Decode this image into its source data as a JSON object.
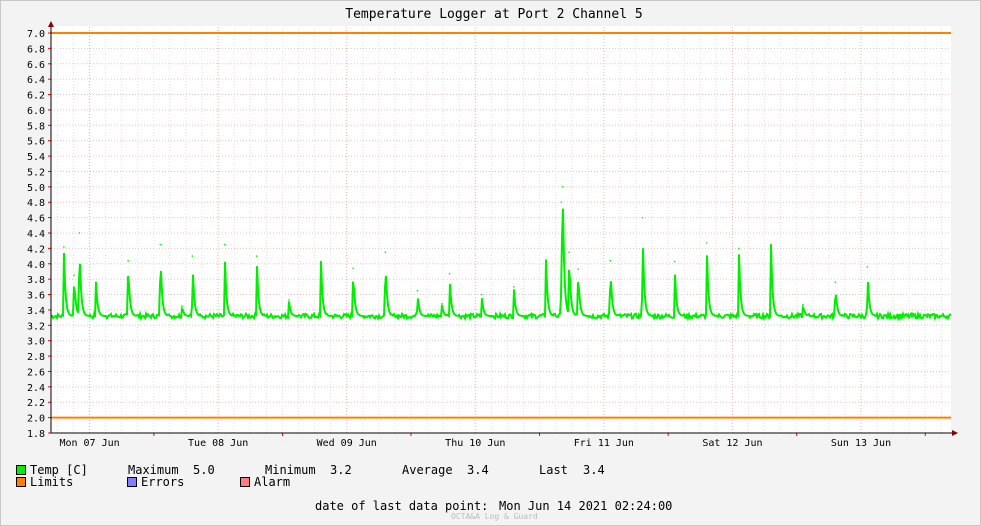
{
  "chart_data": {
    "type": "line",
    "title": "Temperature Logger at Port 2 Channel 5",
    "ylim": [
      1.8,
      7.0
    ],
    "y_ticks": [
      "1.8",
      "2.0",
      "2.2",
      "2.4",
      "2.6",
      "2.8",
      "3.0",
      "3.2",
      "3.4",
      "3.6",
      "3.8",
      "4.0",
      "4.2",
      "4.4",
      "4.6",
      "4.8",
      "5.0",
      "5.2",
      "5.4",
      "5.6",
      "5.8",
      "6.0",
      "6.2",
      "6.4",
      "6.6",
      "6.8",
      "7.0"
    ],
    "x_tick_labels": [
      "Mon 07 Jun",
      "Tue 08 Jun",
      "Wed 09 Jun",
      "Thu 10 Jun",
      "Fri 11 Jun",
      "Sat 12 Jun",
      "Sun 13 Jun"
    ],
    "xlim_days": [
      6.7,
      13.7
    ],
    "grid": true,
    "limits": {
      "upper": 7.0,
      "lower": 2.0,
      "color": "#ff7f00"
    },
    "series": [
      {
        "name": "Temp [C]",
        "color": "#00ee00",
        "baseline": 3.32,
        "spikes": [
          [
            6.8,
            4.22
          ],
          [
            6.88,
            3.85
          ],
          [
            6.92,
            4.4
          ],
          [
            7.05,
            3.76
          ],
          [
            7.3,
            4.04
          ],
          [
            7.55,
            4.25
          ],
          [
            7.72,
            3.45
          ],
          [
            7.8,
            4.1
          ],
          [
            8.05,
            4.25
          ],
          [
            8.3,
            4.1
          ],
          [
            8.55,
            3.53
          ],
          [
            8.8,
            4.03
          ],
          [
            9.05,
            3.94
          ],
          [
            9.3,
            4.15
          ],
          [
            9.55,
            3.65
          ],
          [
            9.74,
            3.48
          ],
          [
            9.8,
            3.87
          ],
          [
            10.05,
            3.6
          ],
          [
            10.3,
            3.7
          ],
          [
            10.55,
            4.05
          ],
          [
            10.67,
            4.8
          ],
          [
            10.68,
            5.0
          ],
          [
            10.73,
            4.15
          ],
          [
            10.8,
            3.93
          ],
          [
            11.05,
            4.04
          ],
          [
            11.3,
            4.6
          ],
          [
            11.55,
            4.03
          ],
          [
            11.8,
            4.27
          ],
          [
            12.05,
            4.2
          ],
          [
            12.3,
            4.25
          ],
          [
            12.55,
            3.47
          ],
          [
            12.8,
            3.76
          ],
          [
            13.05,
            3.96
          ]
        ]
      }
    ]
  },
  "legend": {
    "temp_label": "Temp [C]",
    "maximum_label": "Maximum",
    "maximum_value": "5.0",
    "minimum_label": "Minimum",
    "minimum_value": "3.2",
    "average_label": "Average",
    "average_value": "3.4",
    "last_label": "Last",
    "last_value": "3.4",
    "limits_label": "Limits",
    "errors_label": "Errors",
    "alarm_label": "Alarm",
    "colors": {
      "temp": "#00ee00",
      "limits": "#ff7f00",
      "errors": "#7f7fff",
      "alarm": "#ff7f7f"
    }
  },
  "footer": {
    "date_label": "date of last data point:",
    "date_value": "Mon Jun 14 2021 02:24:00",
    "watermark": "OCTA&A Log & Guard"
  }
}
